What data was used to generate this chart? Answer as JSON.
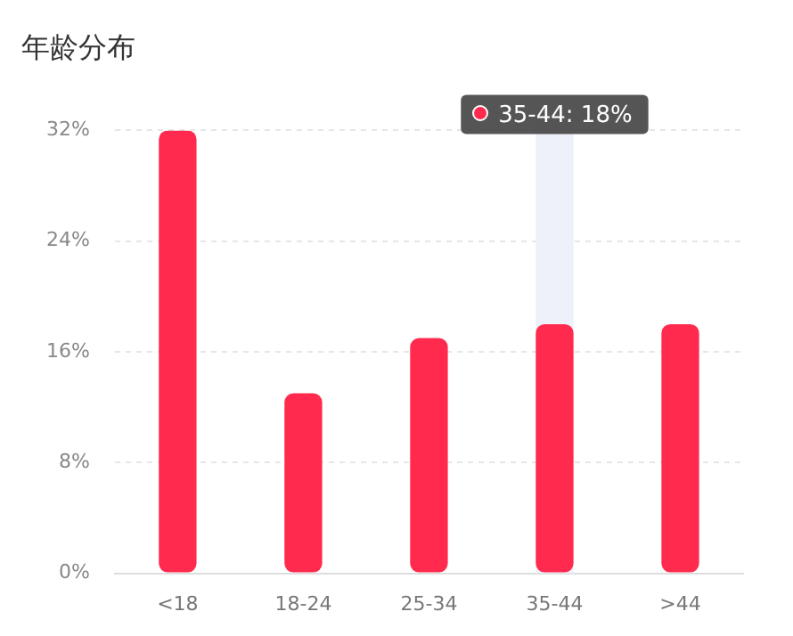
{
  "chart_data": {
    "type": "bar",
    "title": "年龄分布",
    "categories": [
      "<18",
      "18-24",
      "25-34",
      "35-44",
      ">44"
    ],
    "values": [
      32,
      13,
      17,
      18,
      18
    ],
    "color": "#ff2a4d",
    "ylim": [
      0,
      32
    ],
    "yticks": [
      {
        "value": 0,
        "label": "0%"
      },
      {
        "value": 8,
        "label": "8%"
      },
      {
        "value": 16,
        "label": "16%"
      },
      {
        "value": 24,
        "label": "24%"
      },
      {
        "value": 32,
        "label": "32%"
      }
    ],
    "grid": "y",
    "bands": [
      {
        "axis": "x",
        "from": "35-44",
        "to": "35-44",
        "color": "#eef0fa"
      }
    ],
    "annotations": [
      "35-44: 18%"
    ]
  }
}
